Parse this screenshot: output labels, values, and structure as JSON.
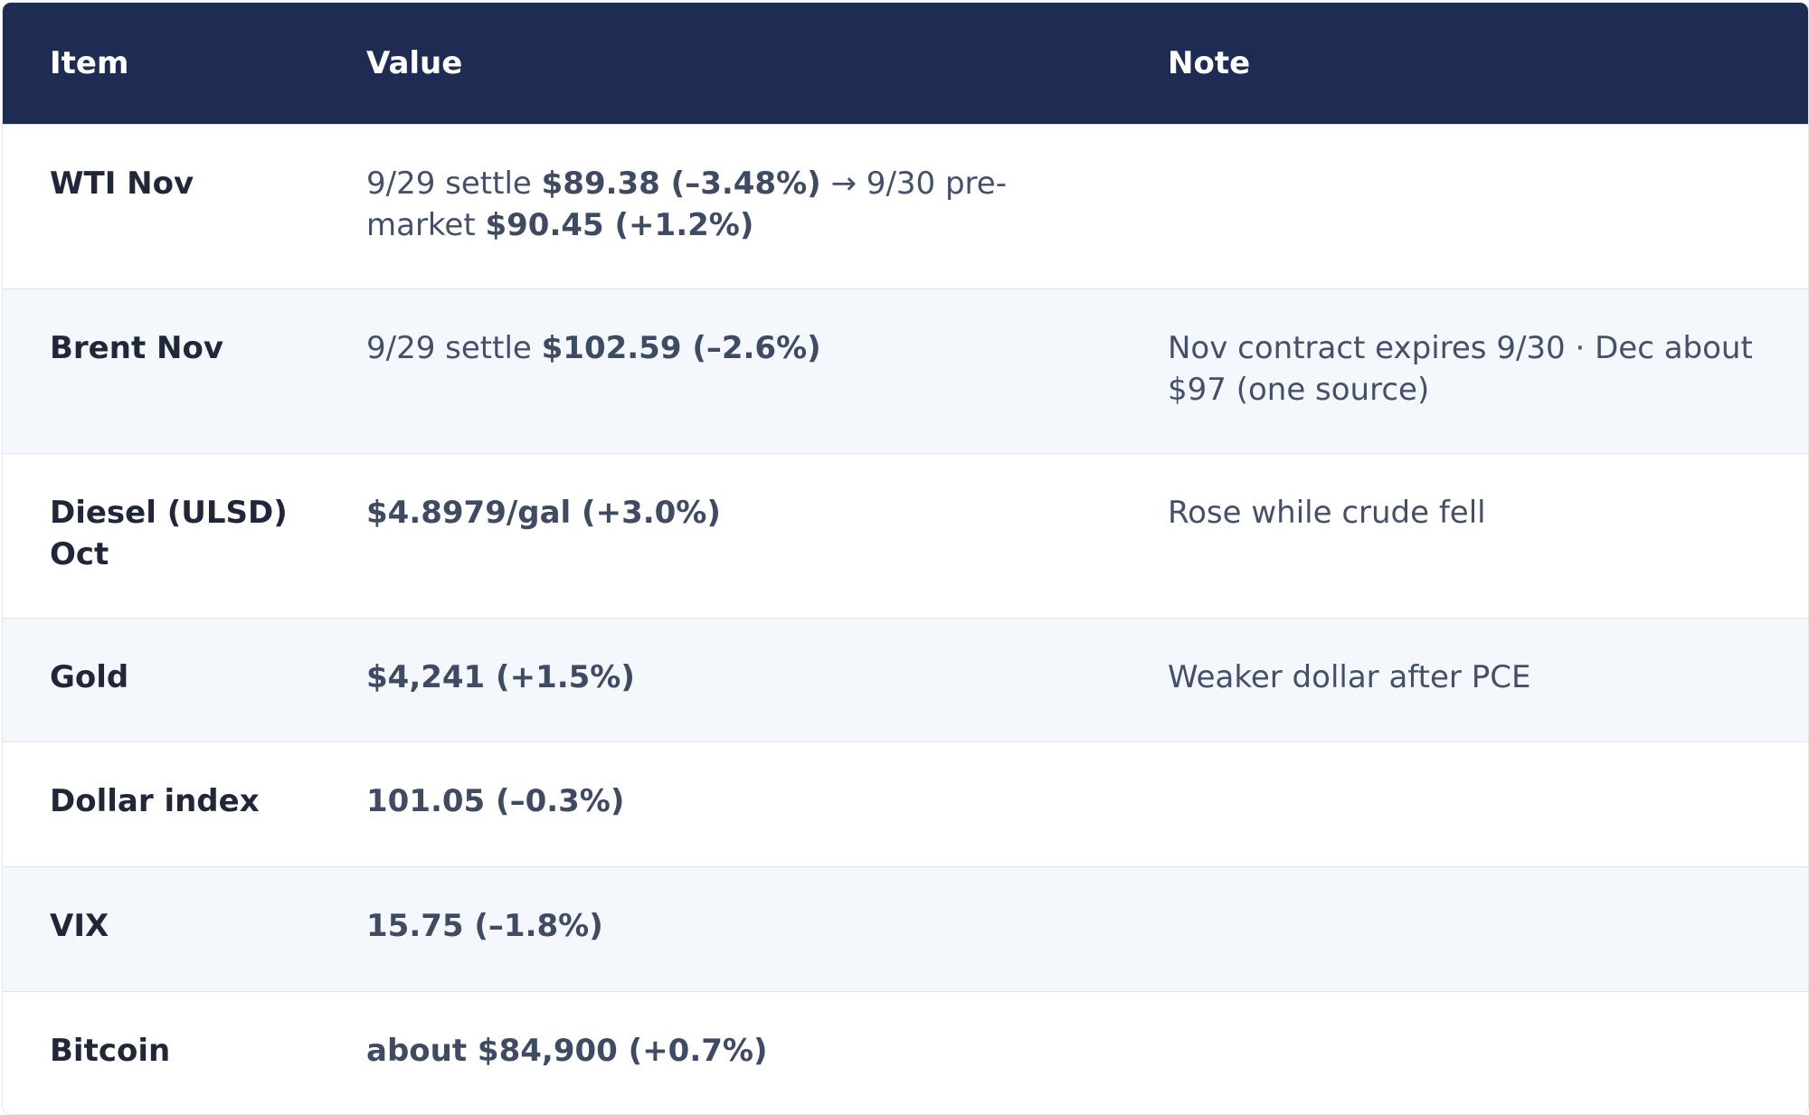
{
  "table": {
    "headers": [
      "Item",
      "Value",
      "Note"
    ],
    "rows": [
      {
        "item": "WTI Nov",
        "value": {
          "pre1": "9/29 settle ",
          "bold1": "$89.38 (–3.48%)",
          "mid": " → 9/30 pre-market ",
          "bold2": "$90.45 (+1.2%)"
        },
        "note": ""
      },
      {
        "item": "Brent Nov",
        "value": {
          "pre1": "9/29 settle ",
          "bold1": "$102.59 (–2.6%)"
        },
        "note": "Nov contract expires 9/30 · Dec about $97 (one source)"
      },
      {
        "item": "Diesel (ULSD) Oct",
        "value": {
          "bold1": "$4.8979/gal (+3.0%)"
        },
        "note": "Rose while crude fell"
      },
      {
        "item": "Gold",
        "value": {
          "bold1": "$4,241 (+1.5%)"
        },
        "note": "Weaker dollar after PCE"
      },
      {
        "item": "Dollar index",
        "value": {
          "bold1": "101.05 (–0.3%)"
        },
        "note": ""
      },
      {
        "item": "VIX",
        "value": {
          "bold1": "15.75 (–1.8%)"
        },
        "note": ""
      },
      {
        "item": "Bitcoin",
        "value": {
          "bold1": "about $84,900 (+0.7%)"
        },
        "note": ""
      }
    ]
  },
  "colors": {
    "header_bg": "#1e2b52",
    "header_text": "#ffffff",
    "row_alt_bg": "#f4f7fb",
    "item_text": "#1f2738",
    "value_text": "#44506a"
  }
}
